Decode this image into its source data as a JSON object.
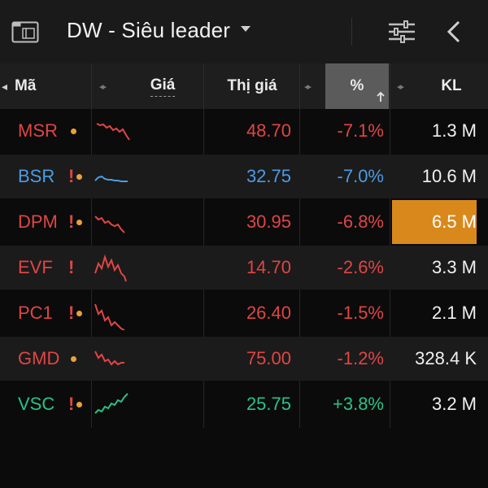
{
  "header": {
    "title": "DW - Siêu leader",
    "icons": {
      "watchlist": "folder-icon",
      "dropdown": "chevron-down-icon",
      "settings": "sliders-icon",
      "back": "chevron-left-icon"
    }
  },
  "columns": {
    "symbol": "Mã",
    "chart": "Giá",
    "price": "Thị giá",
    "change": "%",
    "volume": "KL"
  },
  "colors": {
    "down": "#e04545",
    "up": "#28c38a",
    "reference": "#4d9be3",
    "highlight": "#d9891c",
    "warn": "#e8a23a"
  },
  "rows": [
    {
      "symbol": "MSR",
      "flag": "",
      "dot": true,
      "price": "48.70",
      "change": "-7.1%",
      "volume": "1.3 M",
      "color": "#e04545",
      "trend": "down",
      "spark": "6,10 10,12 14,11 18,15 22,13 26,18 30,16 34,20 38,17 42,24 46,30"
    },
    {
      "symbol": "BSR",
      "flag": "!",
      "dot": true,
      "price": "32.75",
      "change": "-7.0%",
      "volume": "10.6 M",
      "color": "#4d9be3",
      "trend": "down",
      "spark": "4,24 8,20 12,19 16,22 20,23 24,23 28,24 32,24 36,25 40,25 44,25"
    },
    {
      "symbol": "DPM",
      "flag": "!",
      "dot": true,
      "price": "30.95",
      "change": "-6.8%",
      "volume": "6.5 M",
      "color": "#e04545",
      "trend": "down",
      "volume_highlight": true,
      "spark": "4,12 8,16 12,14 16,20 20,18 24,22 28,24 32,22 36,28 40,32"
    },
    {
      "symbol": "EVF",
      "flag": "!",
      "dot": false,
      "price": "14.70",
      "change": "-2.6%",
      "volume": "3.3 M",
      "color": "#e04545",
      "trend": "down",
      "spark": "4,26 8,14 12,20 16,6 20,18 24,10 28,22 32,16 36,26 40,30 42,36"
    },
    {
      "symbol": "PC1",
      "flag": "!",
      "dot": true,
      "price": "26.40",
      "change": "-1.5%",
      "volume": "2.1 M",
      "color": "#e04545",
      "trend": "down",
      "spark": "4,8 8,20 12,16 16,28 20,24 24,34 28,30 32,34 36,38 40,40"
    },
    {
      "symbol": "GMD",
      "flag": "",
      "dot": true,
      "price": "75.00",
      "change": "-1.2%",
      "volume": "328.4 K",
      "color": "#e04545",
      "trend": "down",
      "spark": "4,10 8,18 12,14 16,22 20,20 24,26 28,22 32,26 36,24 40,24"
    },
    {
      "symbol": "VSC",
      "flag": "!",
      "dot": true,
      "price": "25.75",
      "change": "+3.8%",
      "volume": "3.2 M",
      "color": "#28c38a",
      "trend": "up",
      "spark": "4,30 8,26 12,28 16,22 20,24 24,18 28,20 32,14 36,16 40,10 44,6"
    }
  ]
}
